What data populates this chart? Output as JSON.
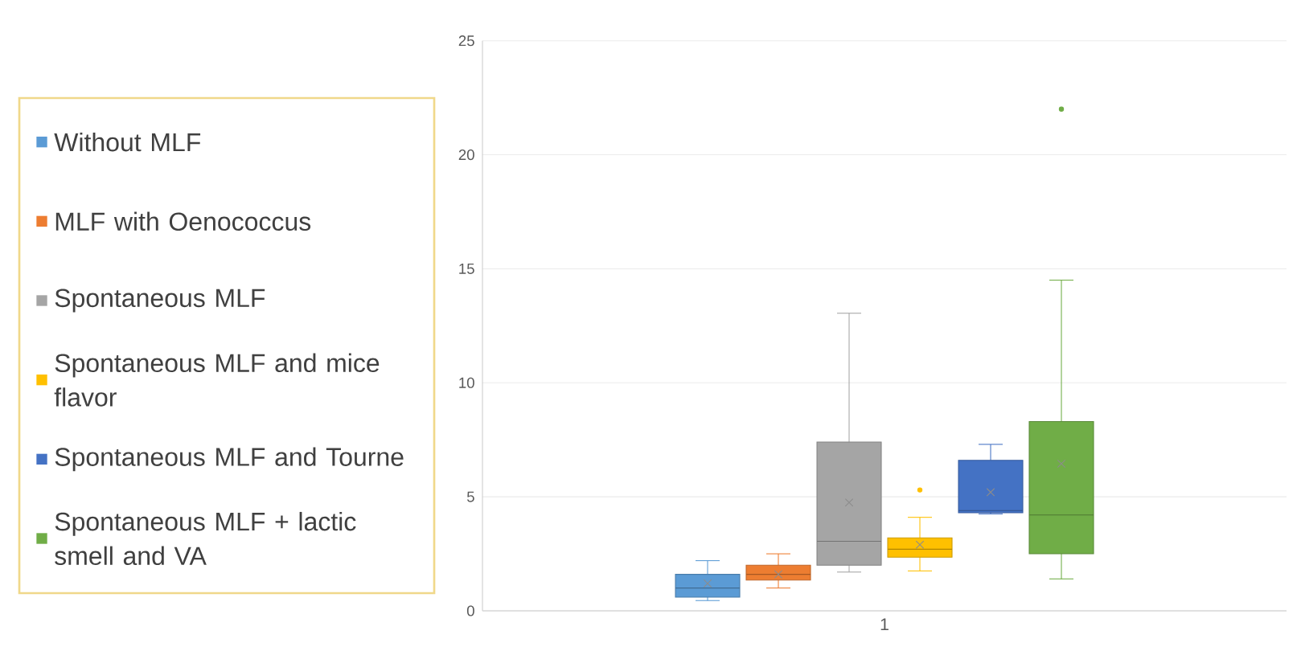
{
  "chart_data": {
    "type": "box",
    "categories": [
      "1"
    ],
    "series": [
      {
        "name": "Without MLF",
        "color": "#5b9bd5",
        "boxes": [
          {
            "low": 0.45,
            "q1": 0.6,
            "median": 1.0,
            "q3": 1.6,
            "high": 2.2,
            "mean": 1.2
          }
        ]
      },
      {
        "name": "MLF with Oenococcus",
        "color": "#ed7d31",
        "boxes": [
          {
            "low": 1.0,
            "q1": 1.35,
            "median": 1.6,
            "q3": 2.0,
            "high": 2.5,
            "mean": 1.6
          }
        ]
      },
      {
        "name": "Spontaneous  MLF",
        "color": "#a5a5a5",
        "boxes": [
          {
            "low": 1.7,
            "q1": 2.0,
            "median": 3.05,
            "q3": 7.4,
            "high": 13.05,
            "mean": 4.75
          }
        ]
      },
      {
        "name": "Spontaneous MLF and mice flavor",
        "color": "#ffc000",
        "boxes": [
          {
            "low": 1.75,
            "q1": 2.35,
            "median": 2.7,
            "q3": 3.2,
            "high": 4.1,
            "mean": 2.9,
            "outliers": [
              5.3
            ]
          }
        ]
      },
      {
        "name": "Spontaneous MLF and Tourne",
        "color": "#4472c4",
        "boxes": [
          {
            "low": 4.25,
            "q1": 4.3,
            "median": 4.4,
            "q3": 6.6,
            "high": 7.3,
            "mean": 5.2
          }
        ]
      },
      {
        "name": "Spontaneous MLF + lactic smell and VA",
        "color": "#70ad47",
        "boxes": [
          {
            "low": 1.4,
            "q1": 2.5,
            "median": 4.2,
            "q3": 8.3,
            "high": 14.5,
            "mean": 6.45,
            "outliers": [
              22.0
            ]
          }
        ]
      }
    ],
    "ylim": [
      0,
      25
    ],
    "yticks": [
      0,
      5,
      10,
      15,
      20,
      25
    ],
    "grid": "y",
    "legend": "left"
  }
}
